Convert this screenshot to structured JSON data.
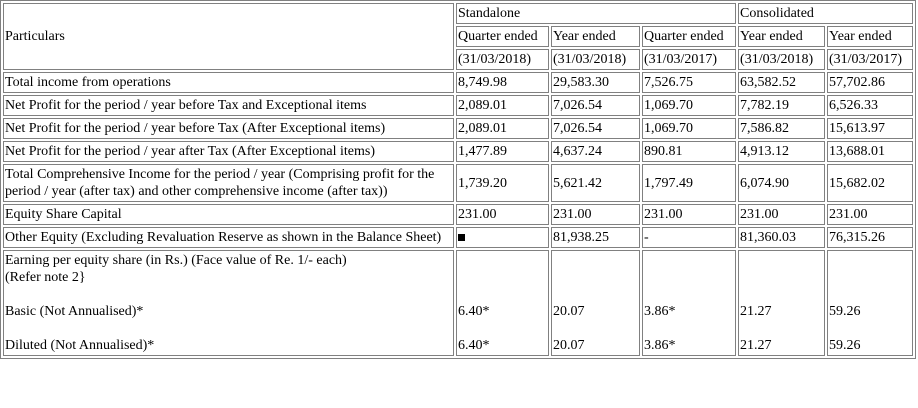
{
  "header": {
    "particulars": "Particulars",
    "standalone": "Standalone",
    "consolidated": "Consolidated",
    "columns": [
      {
        "label": "Quarter ended",
        "date": "(31/03/2018)"
      },
      {
        "label": "Year ended",
        "date": "(31/03/2018)"
      },
      {
        "label": "Quarter ended",
        "date": "(31/03/2017)"
      },
      {
        "label": "Year ended",
        "date": "(31/03/2018)"
      },
      {
        "label": "Year ended",
        "date": "(31/03/2017)"
      }
    ]
  },
  "rows": [
    {
      "label": "Total income from operations",
      "values": [
        "8,749.98",
        "29,583.30",
        "7,526.75",
        "63,582.52",
        "57,702.86"
      ]
    },
    {
      "label": "Net Profit for the period / year before Tax and Exceptional items",
      "values": [
        "2,089.01",
        "7,026.54",
        "1,069.70",
        "7,782.19",
        "6,526.33"
      ]
    },
    {
      "label": "Net Profit for the period / year before Tax (After Exceptional items)",
      "values": [
        "2,089.01",
        "7,026.54",
        "1,069.70",
        "7,586.82",
        "15,613.97"
      ]
    },
    {
      "label": "Net Profit for the period / year after Tax (After Exceptional items)",
      "values": [
        "1,477.89",
        "4,637.24",
        "890.81",
        "4,913.12",
        "13,688.01"
      ]
    },
    {
      "label": "Total Comprehensive Income for the period / year (Comprising profit for the period / year (after tax) and other comprehensive income (after tax))",
      "values": [
        "1,739.20",
        "5,621.42",
        "1,797.49",
        "6,074.90",
        "15,682.02"
      ]
    },
    {
      "label": "Equity Share Capital",
      "values": [
        "231.00",
        "231.00",
        "231.00",
        "231.00",
        "231.00"
      ]
    },
    {
      "label": "Other Equity (Excluding Revaluation Reserve as shown in the Balance Sheet)",
      "values": [
        "",
        "81,938.25",
        "-",
        "81,360.03",
        "76,315.26"
      ]
    }
  ],
  "eps": {
    "title": "Earning per equity share (in Rs.) (Face value of Re. 1/- each)",
    "note": "(Refer note 2}",
    "basic_label": "Basic (Not Annualised)*",
    "diluted_label": "Diluted (Not Annualised)*",
    "basic": [
      "6.40*",
      "20.07",
      "3.86*",
      "21.27",
      "59.26"
    ],
    "diluted": [
      "6.40*",
      "20.07",
      "3.86*",
      "21.27",
      "59.26"
    ]
  }
}
